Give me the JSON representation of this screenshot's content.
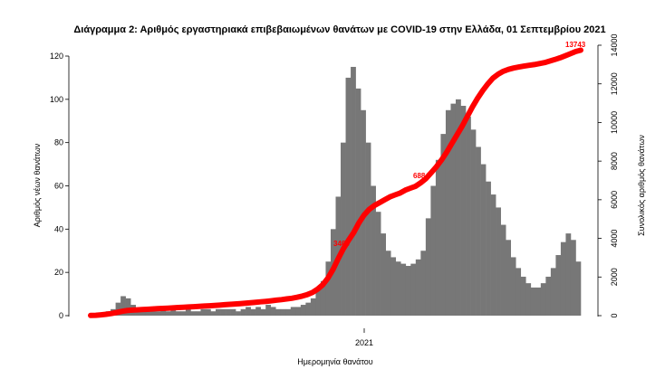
{
  "chart_data": {
    "type": "bar",
    "title": "Διάγραμμα 2: Αριθμός εργαστηριακά επιβεβαιωμένων θανάτων με COVID-19 στην Ελλάδα, 01 Σεπτεμβρίου 2021",
    "xlabel": "Ημερομηνία θανάτου",
    "ylabel": "Αριθμός νέων θανάτων",
    "y2label": "Συνολικός αριθμός θανάτων",
    "x_tick_labels": [
      "2021"
    ],
    "ylim": [
      0,
      125
    ],
    "yticks": [
      0,
      20,
      40,
      60,
      80,
      100,
      120
    ],
    "y2lim": [
      0,
      14000
    ],
    "y2ticks": [
      0,
      2000,
      4000,
      6000,
      8000,
      10000,
      12000,
      14000
    ],
    "grid": false,
    "annotations": [
      "3463",
      "6884",
      "13743"
    ],
    "series": [
      {
        "type": "bar",
        "axis": "left",
        "color": "#777777",
        "weekly_values": [
          1,
          1,
          1,
          2,
          3,
          6,
          9,
          8,
          5,
          3,
          2,
          2,
          2,
          2,
          3,
          2,
          3,
          2,
          2,
          3,
          2,
          2,
          3,
          3,
          2,
          3,
          3,
          3,
          3,
          2,
          3,
          4,
          3,
          4,
          3,
          5,
          4,
          3,
          3,
          3,
          4,
          4,
          5,
          6,
          8,
          12,
          16,
          25,
          40,
          55,
          80,
          110,
          115,
          105,
          95,
          80,
          60,
          48,
          38,
          30,
          27,
          25,
          24,
          23,
          24,
          26,
          30,
          45,
          60,
          72,
          84,
          95,
          98,
          100,
          97,
          92,
          86,
          78,
          70,
          62,
          56,
          50,
          42,
          35,
          27,
          22,
          18,
          15,
          13,
          13,
          15,
          18,
          22,
          28,
          34,
          38,
          35,
          25
        ]
      },
      {
        "type": "line",
        "axis": "right",
        "color": "#ff0000",
        "weekly_values": [
          8,
          20,
          40,
          70,
          110,
          160,
          220,
          260,
          285,
          300,
          315,
          330,
          345,
          360,
          375,
          390,
          405,
          420,
          435,
          450,
          465,
          480,
          495,
          510,
          525,
          545,
          565,
          585,
          605,
          625,
          645,
          665,
          690,
          715,
          740,
          770,
          800,
          830,
          865,
          900,
          950,
          1010,
          1090,
          1200,
          1370,
          1600,
          1950,
          2400,
          2950,
          3463,
          3900,
          4300,
          4800,
          5200,
          5500,
          5700,
          5850,
          6000,
          6150,
          6250,
          6350,
          6500,
          6600,
          6700,
          6884,
          7100,
          7400,
          7700,
          8050,
          8450,
          8900,
          9350,
          9800,
          10300,
          10800,
          11250,
          11650,
          12000,
          12300,
          12500,
          12650,
          12750,
          12820,
          12870,
          12920,
          12960,
          13000,
          13050,
          13100,
          13180,
          13260,
          13350,
          13450,
          13560,
          13670,
          13743
        ]
      }
    ]
  }
}
